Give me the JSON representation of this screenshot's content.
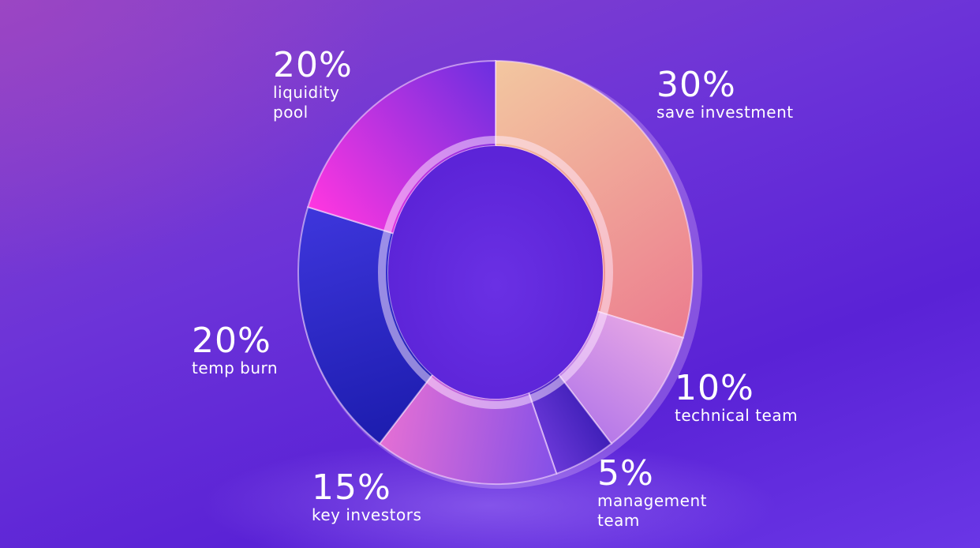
{
  "chart_data": {
    "type": "pie",
    "variant": "donut",
    "categories": [
      "save investment",
      "technical team",
      "management team",
      "key investors",
      "temp burn",
      "liquidity pool"
    ],
    "values": [
      30,
      10,
      5,
      15,
      20,
      20
    ],
    "value_labels": [
      "30%",
      "10%",
      "5%",
      "15%",
      "20%",
      "20%"
    ],
    "legend": "none",
    "grid": false,
    "colors": {
      "save investment": [
        "#f3c7a0",
        "#ec7d8f"
      ],
      "technical team": [
        "#e7a8e6",
        "#b679e8"
      ],
      "management team": [
        "#3f1fb8",
        "#6a38d8"
      ],
      "key investors": [
        "#8450e8",
        "#e46fd4"
      ],
      "temp burn": [
        "#1c1cae",
        "#3e36dc"
      ],
      "liquidity pool": [
        "#ff36e0",
        "#6b2fe0"
      ]
    }
  },
  "labels": {
    "save_investment": {
      "pct": "30%",
      "name": "save investment"
    },
    "technical_team": {
      "pct": "10%",
      "name": "technical team"
    },
    "management_team": {
      "pct": "5%",
      "name": "management\nteam"
    },
    "key_investors": {
      "pct": "15%",
      "name": "key investors"
    },
    "temp_burn": {
      "pct": "20%",
      "name": "temp burn"
    },
    "liquidity_pool": {
      "pct": "20%",
      "name": "liquidity\npool"
    }
  }
}
